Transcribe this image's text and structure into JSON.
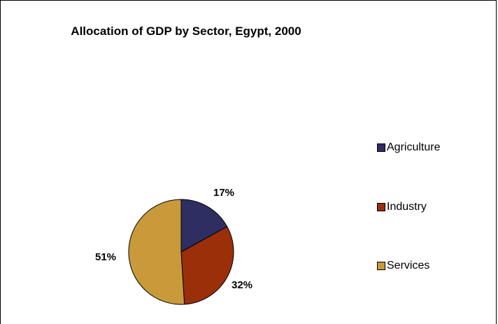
{
  "chart_data": {
    "type": "pie",
    "title": "Allocation of GDP by Sector, Egypt, 2000",
    "categories": [
      "Agriculture",
      "Industry",
      "Services"
    ],
    "values": [
      17,
      32,
      51
    ],
    "labels": [
      "17%",
      "32%",
      "51%"
    ],
    "colors": [
      "#2e2e63",
      "#9b2f0a",
      "#c89a3a"
    ],
    "legend_position": "right"
  }
}
